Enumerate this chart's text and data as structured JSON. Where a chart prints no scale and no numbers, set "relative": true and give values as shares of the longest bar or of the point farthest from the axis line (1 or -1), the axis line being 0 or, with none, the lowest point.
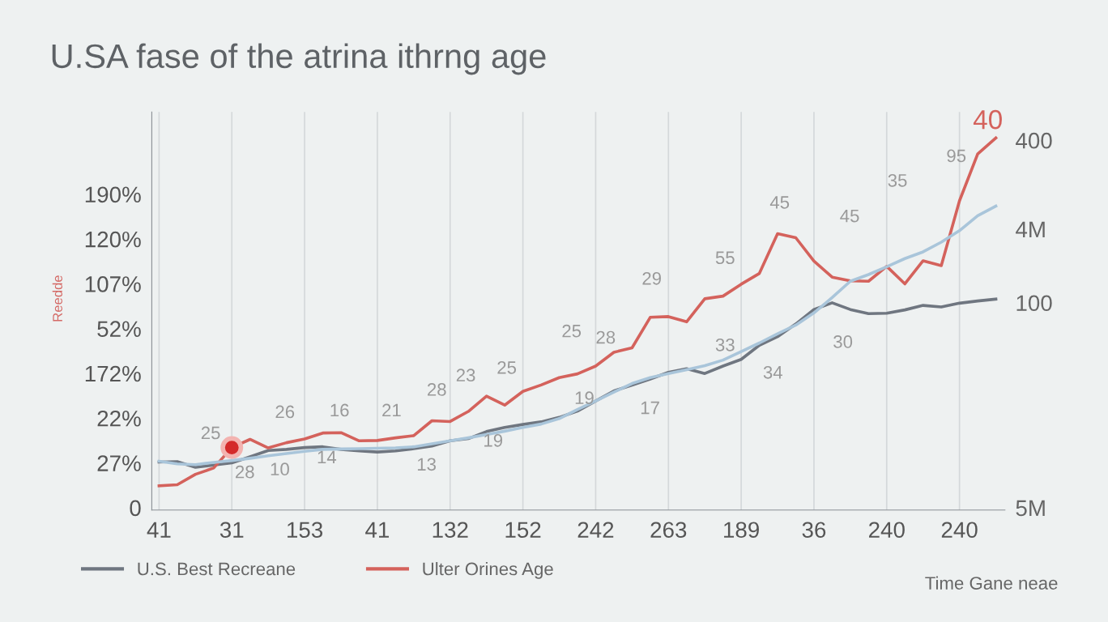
{
  "chart_data": {
    "type": "line",
    "title": "U.SA fase of the atrina ithrng age",
    "xlabel": "Time Gane neae",
    "relative": true,
    "categories": [
      "41",
      null,
      null,
      null,
      "31",
      null,
      null,
      null,
      "153",
      null,
      null,
      null,
      "41",
      null,
      null,
      null,
      "132",
      null,
      null,
      null,
      "152",
      null,
      null,
      null,
      "242",
      null,
      null,
      null,
      "263",
      null,
      null,
      null,
      "189",
      null,
      null,
      null,
      "36",
      null,
      null,
      null,
      "240",
      null,
      null,
      null,
      "240",
      null,
      null
    ],
    "grid": "x",
    "legend": "bottom left",
    "line_style": "solid",
    "series": [
      {
        "name": "U.S. Best Recreane",
        "color": "#6f7680",
        "values": [
          0.129,
          0.13,
          0.115,
          0.121,
          0.127,
          0.143,
          0.16,
          0.163,
          0.168,
          0.17,
          0.163,
          0.159,
          0.156,
          0.159,
          0.165,
          0.172,
          0.186,
          0.192,
          0.211,
          0.222,
          0.23,
          0.237,
          0.249,
          0.266,
          0.293,
          0.32,
          0.336,
          0.352,
          0.37,
          0.38,
          0.367,
          0.387,
          0.405,
          0.443,
          0.466,
          0.5,
          0.539,
          0.557,
          0.539,
          0.528,
          0.529,
          0.538,
          0.55,
          0.546,
          0.556,
          0.562,
          0.567
        ]
      },
      {
        "name": "Ulter Orines Age",
        "color": "#d4625c",
        "values": [
          0.065,
          0.068,
          0.096,
          0.113,
          0.168,
          0.19,
          0.167,
          0.181,
          0.191,
          0.207,
          0.208,
          0.186,
          0.187,
          0.194,
          0.2,
          0.24,
          0.238,
          0.265,
          0.306,
          0.282,
          0.319,
          0.336,
          0.356,
          0.366,
          0.387,
          0.424,
          0.436,
          0.518,
          0.52,
          0.506,
          0.568,
          0.575,
          0.607,
          0.636,
          0.743,
          0.732,
          0.669,
          0.626,
          0.616,
          0.615,
          0.655,
          0.608,
          0.67,
          0.657,
          0.831,
          0.957,
          1
        ]
      },
      {
        "color": "#a9c5da",
        "values": [
          0.131,
          0.124,
          0.122,
          0.128,
          0.133,
          0.139,
          0.146,
          0.152,
          0.158,
          0.163,
          0.164,
          0.165,
          0.166,
          0.167,
          0.17,
          0.178,
          0.186,
          0.194,
          0.203,
          0.212,
          0.222,
          0.231,
          0.246,
          0.27,
          0.293,
          0.317,
          0.34,
          0.356,
          0.367,
          0.377,
          0.388,
          0.403,
          0.426,
          0.449,
          0.474,
          0.497,
          0.53,
          0.571,
          0.615,
          0.633,
          0.654,
          0.676,
          0.694,
          0.72,
          0.751,
          0.791,
          0.817
        ]
      },
      {
        "type": "scatter",
        "marker": "circle",
        "color": "#d42a2a",
        "x": [
          "31"
        ],
        "values": [
          0.168
        ]
      }
    ],
    "annotations": [
      "25",
      "28",
      "10",
      "26",
      "16",
      "14",
      "21",
      "13",
      "28",
      "23",
      "25",
      "19",
      "25",
      "28",
      "19",
      "17",
      "29",
      "33",
      "34",
      "55",
      "45",
      "45",
      "30",
      "35",
      "95",
      "40",
      "0",
      "27%",
      "22%",
      "172%",
      "52%",
      "107%",
      "120%",
      "190%",
      "5M",
      "100",
      "4M",
      "400",
      "Reedde"
    ]
  }
}
